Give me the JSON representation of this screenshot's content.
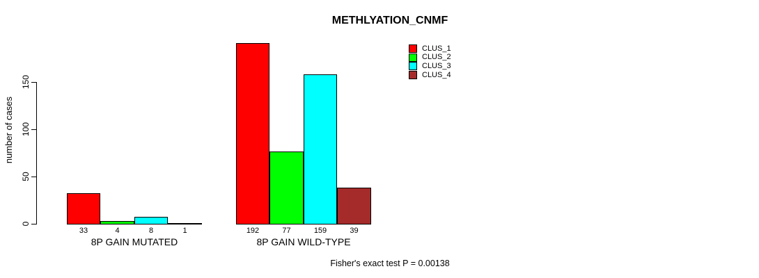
{
  "chart_data": {
    "type": "bar",
    "title": "METHLYATION_CNMF",
    "ylabel": "number of cases",
    "yticks": [
      0,
      50,
      100,
      150
    ],
    "ylim": [
      0,
      200
    ],
    "grid": false,
    "legend_position": "top-right",
    "categories": [
      "8P GAIN MUTATED",
      "8P GAIN WILD-TYPE"
    ],
    "series": [
      {
        "name": "CLUS_1",
        "color": "#ff0000",
        "values": [
          33,
          192
        ]
      },
      {
        "name": "CLUS_2",
        "color": "#00ff00",
        "values": [
          4,
          77
        ]
      },
      {
        "name": "CLUS_3",
        "color": "#00ffff",
        "values": [
          8,
          159
        ]
      },
      {
        "name": "CLUS_4",
        "color": "#a52a2a",
        "values": [
          1,
          39
        ]
      }
    ],
    "bar_value_labels": true,
    "footnote": "Fisher's exact test P = 0.00138"
  },
  "colors": {
    "background": "#ffffff",
    "axis": "#000000",
    "text": "#000000"
  }
}
